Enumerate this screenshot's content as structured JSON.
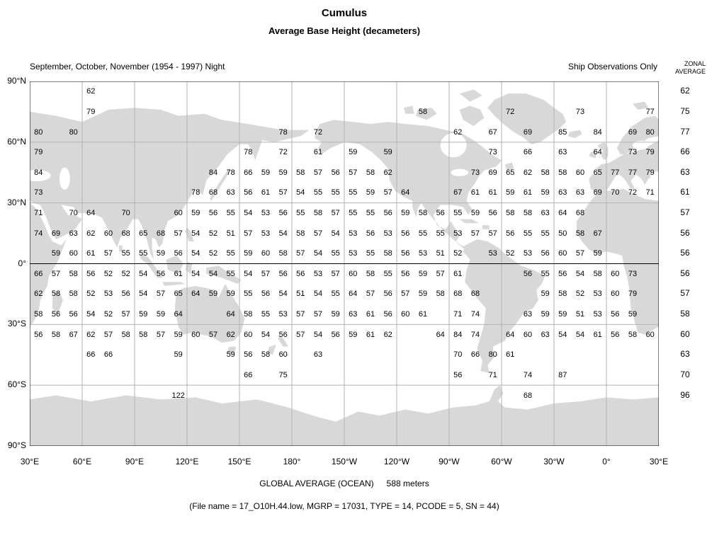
{
  "title": "Cumulus",
  "subtitle": "Average Base Height (decameters)",
  "header": {
    "season": "September, October, November (1954 - 1997) Night",
    "source": "Ship Observations Only",
    "zonal_line1": "ZONAL",
    "zonal_line2": "AVERAGE"
  },
  "footer": {
    "global_average_label": "GLOBAL AVERAGE (OCEAN)",
    "global_average_value": "588 meters",
    "file_info": "(File name = 17_O10H.44.low, MGRP = 17031, TYPE = 14, PCODE = 5, SN = 44)"
  },
  "colors": {
    "land": "#d8d8d8",
    "grid": "#b3b3b3"
  },
  "chart_data": {
    "type": "heatmap",
    "title": "Cumulus",
    "subtitle": "Average Base Height (decameters)",
    "units": "decameters",
    "season": "September, October, November (1954 - 1997) Night",
    "source": "Ship Observations Only",
    "projection": "equirectangular, Pacific-centered, 30E to 30E",
    "lon_left_edge_deg_east": 30,
    "lon_step_deg": 10,
    "lat_step_deg": 10,
    "lat_tick_labels": [
      "90°N",
      "60°N",
      "30°N",
      "0°",
      "30°S",
      "60°S",
      "90°S"
    ],
    "lon_tick_labels": [
      "30°E",
      "60°E",
      "90°E",
      "120°E",
      "150°E",
      "180°",
      "150°W",
      "120°W",
      "90°W",
      "60°W",
      "30°W",
      "0°",
      "30°E"
    ],
    "global_average_ocean_meters": 588,
    "zonal_average": [
      62,
      75,
      77,
      66,
      63,
      61,
      57,
      56,
      56,
      56,
      57,
      58,
      60,
      63,
      70,
      96
    ],
    "rows": [
      {
        "lat": 85,
        "values": [
          null,
          null,
          null,
          62,
          null,
          null,
          null,
          null,
          null,
          null,
          null,
          null,
          null,
          null,
          null,
          null,
          null,
          null,
          null,
          null,
          null,
          null,
          null,
          null,
          null,
          null,
          null,
          null,
          null,
          null,
          null,
          null,
          null,
          null,
          null,
          null
        ]
      },
      {
        "lat": 75,
        "values": [
          null,
          null,
          null,
          79,
          null,
          null,
          null,
          null,
          null,
          null,
          null,
          null,
          null,
          null,
          null,
          null,
          null,
          null,
          null,
          null,
          null,
          null,
          58,
          null,
          null,
          null,
          null,
          72,
          null,
          null,
          null,
          73,
          null,
          null,
          null,
          77
        ]
      },
      {
        "lat": 65,
        "values": [
          80,
          null,
          80,
          null,
          null,
          null,
          null,
          null,
          null,
          null,
          null,
          null,
          null,
          null,
          78,
          null,
          72,
          null,
          null,
          null,
          null,
          null,
          null,
          null,
          62,
          null,
          67,
          null,
          69,
          null,
          85,
          null,
          84,
          null,
          69,
          80
        ]
      },
      {
        "lat": 55,
        "values": [
          79,
          null,
          null,
          null,
          null,
          null,
          null,
          null,
          null,
          null,
          null,
          null,
          78,
          null,
          72,
          null,
          61,
          null,
          59,
          null,
          59,
          null,
          null,
          null,
          null,
          null,
          73,
          null,
          66,
          null,
          63,
          null,
          64,
          null,
          73,
          79
        ]
      },
      {
        "lat": 45,
        "values": [
          84,
          null,
          null,
          null,
          null,
          null,
          null,
          null,
          null,
          null,
          84,
          78,
          66,
          59,
          59,
          58,
          57,
          56,
          57,
          58,
          62,
          null,
          null,
          null,
          null,
          73,
          69,
          65,
          62,
          58,
          58,
          60,
          65,
          77,
          77,
          79
        ]
      },
      {
        "lat": 35,
        "values": [
          73,
          null,
          null,
          null,
          null,
          null,
          null,
          null,
          null,
          78,
          68,
          63,
          56,
          61,
          57,
          54,
          55,
          55,
          55,
          59,
          57,
          64,
          null,
          null,
          67,
          61,
          61,
          59,
          61,
          59,
          63,
          63,
          69,
          70,
          72,
          71
        ]
      },
      {
        "lat": 25,
        "values": [
          71,
          null,
          70,
          64,
          null,
          70,
          null,
          null,
          60,
          59,
          56,
          55,
          54,
          53,
          56,
          55,
          58,
          57,
          55,
          55,
          56,
          59,
          58,
          56,
          55,
          59,
          56,
          58,
          58,
          63,
          64,
          68,
          null,
          null,
          null,
          null
        ]
      },
      {
        "lat": 15,
        "values": [
          74,
          69,
          63,
          62,
          60,
          68,
          65,
          68,
          57,
          54,
          52,
          51,
          57,
          53,
          54,
          58,
          57,
          54,
          53,
          56,
          53,
          56,
          55,
          55,
          53,
          57,
          57,
          56,
          55,
          55,
          50,
          58,
          67,
          null,
          null,
          null
        ]
      },
      {
        "lat": 5,
        "values": [
          null,
          59,
          60,
          61,
          57,
          55,
          55,
          59,
          56,
          54,
          52,
          55,
          59,
          60,
          58,
          57,
          54,
          55,
          53,
          55,
          58,
          56,
          53,
          51,
          52,
          null,
          53,
          52,
          53,
          56,
          60,
          57,
          59,
          null,
          null,
          null
        ]
      },
      {
        "lat": -5,
        "values": [
          66,
          57,
          58,
          56,
          52,
          52,
          54,
          56,
          61,
          54,
          54,
          55,
          54,
          57,
          56,
          56,
          53,
          57,
          60,
          58,
          55,
          56,
          59,
          57,
          61,
          null,
          null,
          null,
          56,
          55,
          56,
          54,
          58,
          60,
          73,
          null
        ]
      },
      {
        "lat": -15,
        "values": [
          62,
          58,
          58,
          52,
          53,
          56,
          54,
          57,
          65,
          64,
          59,
          59,
          55,
          56,
          54,
          51,
          54,
          55,
          64,
          57,
          56,
          57,
          59,
          58,
          68,
          68,
          null,
          null,
          null,
          59,
          58,
          52,
          53,
          60,
          79,
          null
        ]
      },
      {
        "lat": -25,
        "values": [
          58,
          56,
          56,
          54,
          52,
          57,
          59,
          59,
          64,
          null,
          null,
          64,
          58,
          55,
          53,
          57,
          57,
          59,
          63,
          61,
          56,
          60,
          61,
          null,
          71,
          74,
          null,
          null,
          63,
          59,
          59,
          51,
          53,
          56,
          59,
          null
        ]
      },
      {
        "lat": -35,
        "values": [
          56,
          58,
          67,
          62,
          57,
          58,
          58,
          57,
          59,
          60,
          57,
          62,
          60,
          54,
          56,
          57,
          54,
          56,
          59,
          61,
          62,
          null,
          null,
          64,
          84,
          74,
          null,
          64,
          60,
          63,
          54,
          54,
          61,
          56,
          58,
          60
        ]
      },
      {
        "lat": -45,
        "values": [
          null,
          null,
          null,
          66,
          66,
          null,
          null,
          null,
          59,
          null,
          null,
          59,
          56,
          58,
          60,
          null,
          63,
          null,
          null,
          null,
          null,
          null,
          null,
          null,
          70,
          66,
          80,
          61,
          null,
          null,
          null,
          null,
          null,
          null,
          null,
          null
        ]
      },
      {
        "lat": -55,
        "values": [
          null,
          null,
          null,
          null,
          null,
          null,
          null,
          null,
          null,
          null,
          null,
          null,
          66,
          null,
          75,
          null,
          null,
          null,
          null,
          null,
          null,
          null,
          null,
          null,
          56,
          null,
          71,
          null,
          74,
          null,
          87,
          null,
          null,
          null,
          null,
          null
        ]
      },
      {
        "lat": -65,
        "values": [
          null,
          null,
          null,
          null,
          null,
          null,
          null,
          null,
          122,
          null,
          null,
          null,
          null,
          null,
          null,
          null,
          null,
          null,
          null,
          null,
          null,
          null,
          null,
          null,
          null,
          null,
          null,
          null,
          68,
          null,
          null,
          null,
          null,
          null,
          null,
          null
        ]
      }
    ]
  }
}
